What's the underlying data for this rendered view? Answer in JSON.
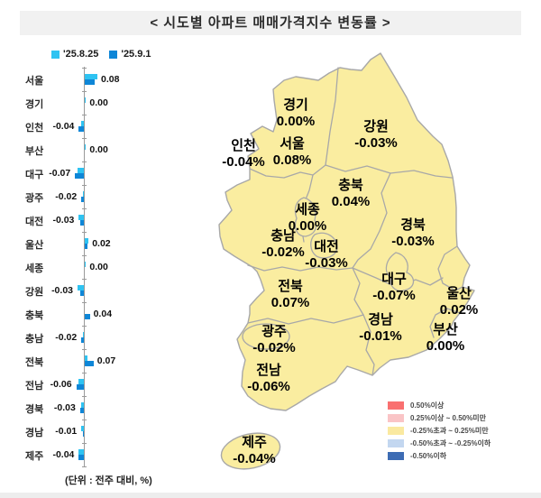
{
  "title": "< 시도별 아파트 매매가격지수 변동률 >",
  "unit_note": "(단위 : 전주 대비, %)",
  "colors": {
    "series_prev": "#2EC3F2",
    "series_curr": "#0E86D7",
    "map_fill": "#FAEDA0",
    "map_border": "#A8A8A8",
    "title_bg": "#F1F1F1"
  },
  "series_legend": [
    {
      "label": "'25.8.25",
      "color": "#2EC3F2"
    },
    {
      "label": "'25.9.1",
      "color": "#0E86D7"
    }
  ],
  "chart_data": {
    "type": "bar",
    "orientation": "horizontal",
    "title": "시도별 아파트 매매가격지수 변동률",
    "unit": "전주 대비, %",
    "categories": [
      "서울",
      "경기",
      "인천",
      "부산",
      "대구",
      "광주",
      "대전",
      "울산",
      "세종",
      "강원",
      "충북",
      "충남",
      "전북",
      "전남",
      "경북",
      "경남",
      "제주"
    ],
    "series": [
      {
        "name": "'25.8.25",
        "color": "#2EC3F2",
        "values": [
          0.1,
          0.01,
          -0.02,
          0.01,
          -0.05,
          -0.01,
          -0.04,
          0.03,
          0.01,
          -0.05,
          0.0,
          -0.01,
          0.02,
          -0.04,
          -0.02,
          -0.02,
          -0.04
        ]
      },
      {
        "name": "'25.9.1",
        "color": "#0E86D7",
        "values": [
          0.08,
          0.0,
          -0.04,
          0.0,
          -0.07,
          -0.02,
          -0.03,
          0.02,
          0.0,
          -0.03,
          0.04,
          -0.02,
          0.07,
          -0.06,
          -0.03,
          -0.01,
          -0.04
        ]
      }
    ],
    "value_labels": [
      "0.08",
      "0.00",
      "-0.04",
      "0.00",
      "-0.07",
      "-0.02",
      "-0.03",
      "0.02",
      "0.00",
      "-0.03",
      "0.04",
      "-0.02",
      "0.07",
      "-0.06",
      "-0.03",
      "-0.01",
      "-0.04"
    ],
    "labeled_series": "'25.9.1",
    "xlim": [
      -0.1,
      0.15
    ],
    "grid": false,
    "legend_position": "top"
  },
  "map": {
    "regions": [
      {
        "name": "경기",
        "value": "0.00%"
      },
      {
        "name": "인천",
        "value": "-0.04%"
      },
      {
        "name": "서울",
        "value": "0.08%"
      },
      {
        "name": "강원",
        "value": "-0.03%"
      },
      {
        "name": "충북",
        "value": "0.04%"
      },
      {
        "name": "세종",
        "value": "0.00%"
      },
      {
        "name": "충남",
        "value": "-0.02%"
      },
      {
        "name": "대전",
        "value": "-0.03%"
      },
      {
        "name": "경북",
        "value": "-0.03%"
      },
      {
        "name": "대구",
        "value": "-0.07%"
      },
      {
        "name": "울산",
        "value": "0.02%"
      },
      {
        "name": "전북",
        "value": "0.07%"
      },
      {
        "name": "경남",
        "value": "-0.01%"
      },
      {
        "name": "부산",
        "value": "0.00%"
      },
      {
        "name": "광주",
        "value": "-0.02%"
      },
      {
        "name": "전남",
        "value": "-0.06%"
      },
      {
        "name": "제주",
        "value": "-0.04%"
      }
    ],
    "legend": [
      {
        "color": "#F97070",
        "label": "0.50%이상"
      },
      {
        "color": "#FAC4C6",
        "label": "0.25%이상 ~ 0.50%미만"
      },
      {
        "color": "#FAE9A0",
        "label": "-0.25%초과 ~ 0.25%미만"
      },
      {
        "color": "#C3D7F0",
        "label": "-0.50%초과 ~ -0.25%이하"
      },
      {
        "color": "#3D6CB4",
        "label": "-0.50%이하"
      }
    ]
  }
}
